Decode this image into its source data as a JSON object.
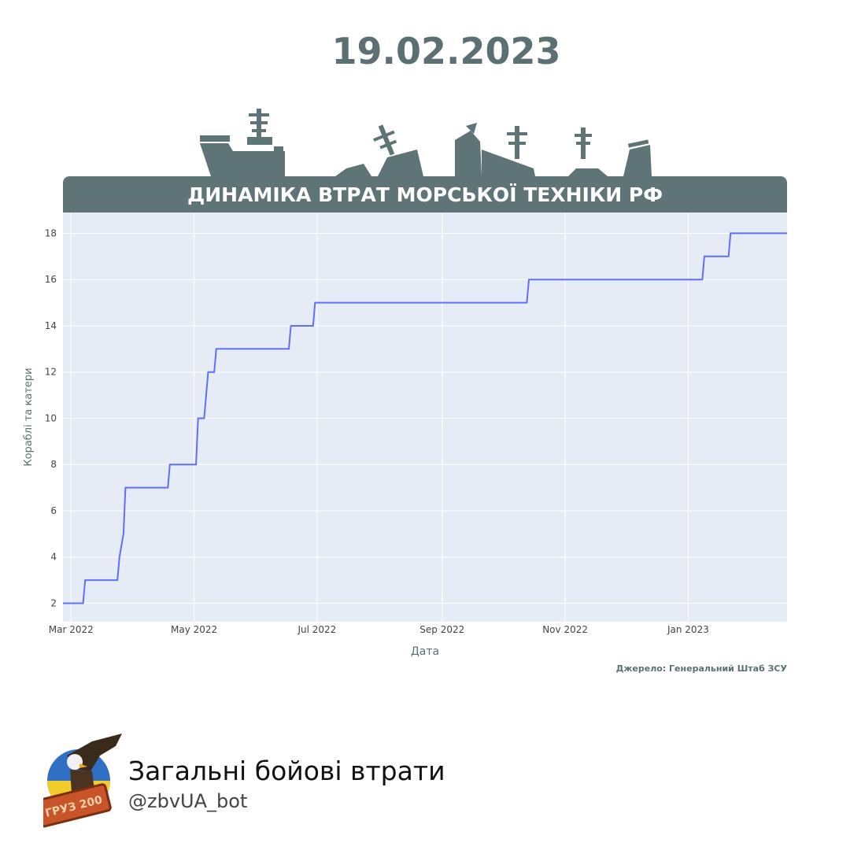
{
  "header": {
    "date": "19.02.2023",
    "banner_title": "ДИНАМІКА ВТРАТ МОРСЬКОЇ ТЕХНІКИ РФ"
  },
  "source_note": "Джерело: Генеральний Штаб ЗСУ",
  "footer": {
    "title": "Загальні бойові втрати",
    "handle": "@zbvUA_bot",
    "logo_label": "ГРУЗ 200"
  },
  "colors": {
    "accent": "#5f7477",
    "plot_bg": "#e5ecf6",
    "line": "#636efa",
    "text": "#5c7073"
  },
  "icons": [
    "warship-icon",
    "sinking-ship-icon",
    "eagle-logo-icon"
  ],
  "chart_data": {
    "type": "line",
    "line_shape": "step",
    "title": "ДИНАМІКА ВТРАТ МОРСЬКОЇ ТЕХНІКИ РФ",
    "xlabel": "Дата",
    "ylabel": "Кораблі та катери",
    "xlim": [
      "2022-02-25",
      "2023-02-19"
    ],
    "ylim": [
      1.2,
      18.9
    ],
    "grid": true,
    "legend": "none",
    "x_ticks": [
      {
        "date": "2022-03-01",
        "label": "Mar 2022"
      },
      {
        "date": "2022-05-01",
        "label": "May 2022"
      },
      {
        "date": "2022-07-01",
        "label": "Jul 2022"
      },
      {
        "date": "2022-09-01",
        "label": "Sep 2022"
      },
      {
        "date": "2022-11-01",
        "label": "Nov 2022"
      },
      {
        "date": "2023-01-01",
        "label": "Jan 2023"
      }
    ],
    "y_ticks": [
      2,
      4,
      6,
      8,
      10,
      12,
      14,
      16,
      18
    ],
    "series": [
      {
        "x": [
          "2022-02-25",
          "2022-03-07",
          "2022-03-08",
          "2022-03-24",
          "2022-03-25",
          "2022-03-27",
          "2022-03-28",
          "2022-04-18",
          "2022-04-19",
          "2022-05-02",
          "2022-05-03",
          "2022-05-06",
          "2022-05-07",
          "2022-05-08",
          "2022-05-11",
          "2022-05-12",
          "2022-06-17",
          "2022-06-18",
          "2022-06-29",
          "2022-06-30",
          "2022-10-13",
          "2022-10-14",
          "2023-01-08",
          "2023-01-09",
          "2023-01-21",
          "2023-01-22",
          "2023-02-19"
        ],
        "y": [
          2,
          2,
          3,
          3,
          4,
          5,
          7,
          7,
          8,
          8,
          10,
          10,
          11,
          12,
          12,
          13,
          13,
          14,
          14,
          15,
          15,
          16,
          16,
          17,
          17,
          18,
          18
        ]
      }
    ]
  }
}
